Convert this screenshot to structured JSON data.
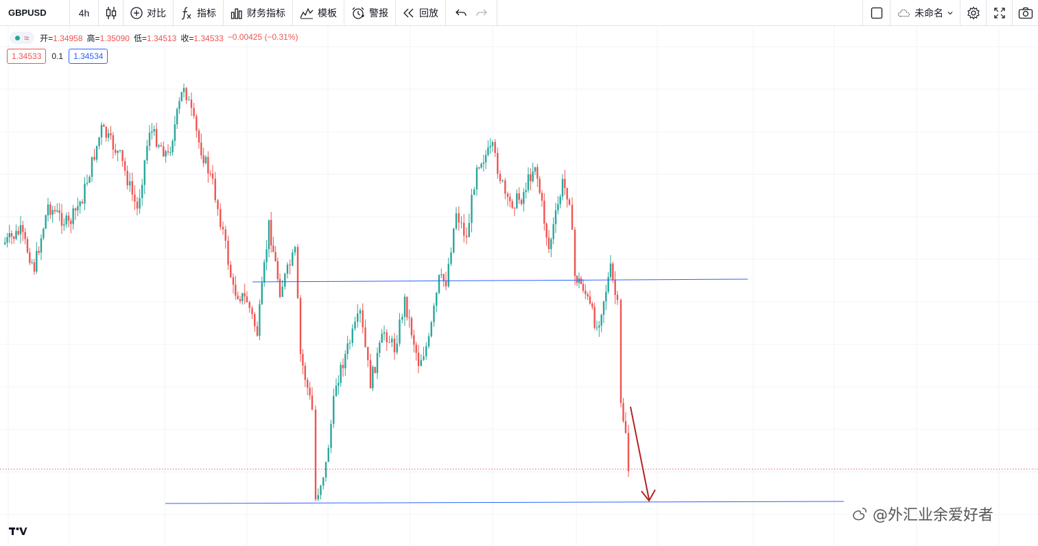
{
  "toolbar": {
    "symbol": "GBPUSD",
    "interval": "4h",
    "compare_label": "对比",
    "indicators_label": "指标",
    "financials_label": "财务指标",
    "templates_label": "模板",
    "alert_label": "警报",
    "replay_label": "回放",
    "layout_name": "未命名"
  },
  "legend": {
    "open_label": "开=",
    "open": "1.34958",
    "high_label": "高=",
    "high": "1.35090",
    "low_label": "低=",
    "low": "1.34513",
    "close_label": "收=",
    "close": "1.34533",
    "change": "−0.00425 (−0.31%)"
  },
  "quote": {
    "sell": "1.34533",
    "spread": "0.1",
    "buy": "1.34534"
  },
  "watermark": "@外汇业余爱好者",
  "colors": {
    "up": "#26a69a",
    "down": "#ef5350",
    "trendline": "#2962ff",
    "arrow": "#b22222"
  },
  "chart_data": {
    "type": "candlestick",
    "symbol": "GBPUSD",
    "interval": "4h",
    "last_bar": {
      "open": 1.34958,
      "high": 1.3509,
      "low": 1.34513,
      "close": 1.34533
    },
    "horizontal_lines": [
      "resistance-support",
      "support"
    ],
    "annotation": "down-arrow"
  }
}
